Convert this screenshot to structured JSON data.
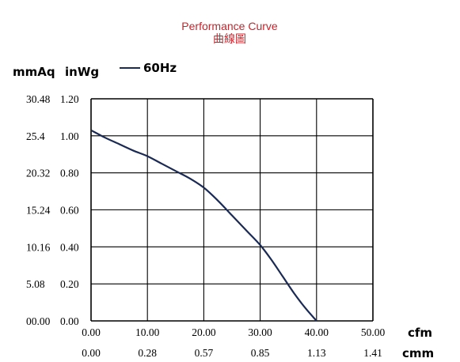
{
  "chart_data": {
    "type": "line",
    "title": "Performance Curve",
    "subtitle": "曲線圖",
    "y_units": [
      "mmAq",
      "inWg"
    ],
    "x_units": [
      "cfm",
      "cmm"
    ],
    "y_ticks_inwg": [
      "0.00",
      "0.20",
      "0.40",
      "0.60",
      "0.80",
      "1.00",
      "1.20"
    ],
    "y_ticks_mmaq": [
      "00.00",
      "5.08",
      "10.16",
      "15.24",
      "20.32",
      "25.4",
      "30.48"
    ],
    "x_ticks_cfm": [
      "0.00",
      "10.00",
      "20.00",
      "30.00",
      "40.00",
      "50.00"
    ],
    "x_ticks_cmm": [
      "0.00",
      "0.28",
      "0.57",
      "0.85",
      "1.13",
      "1.41"
    ],
    "xlim": [
      0,
      50
    ],
    "ylim": [
      0,
      1.2
    ],
    "grid": true,
    "legend_position": "top-left",
    "series": [
      {
        "name": "60Hz",
        "color": "#1b2a52",
        "x": [
          0,
          2.5,
          5,
          7.5,
          10,
          12.5,
          15,
          17.5,
          20,
          22.5,
          25,
          27.5,
          30,
          32,
          34,
          36,
          38,
          40
        ],
        "y": [
          1.03,
          0.99,
          0.955,
          0.92,
          0.89,
          0.85,
          0.81,
          0.77,
          0.72,
          0.65,
          0.57,
          0.49,
          0.41,
          0.33,
          0.24,
          0.15,
          0.07,
          0
        ]
      }
    ]
  }
}
